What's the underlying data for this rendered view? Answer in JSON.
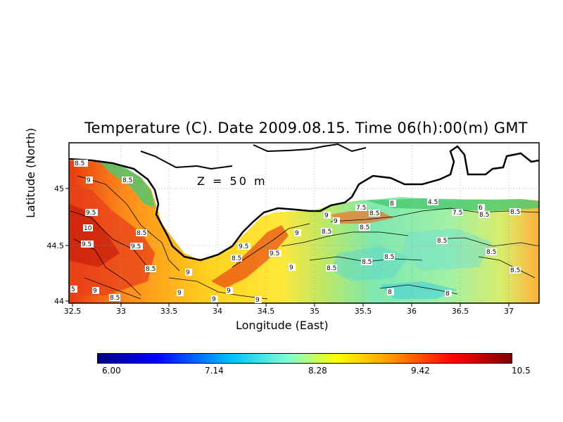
{
  "title": "Temperature (C). Date 2009.08.15. Time 06(h):00(m) GMT",
  "depth_label": "Z = 50 m",
  "xlabel": "Longitude (East)",
  "ylabel": "Latitude (North)",
  "x_ticks": [
    "32.5",
    "33",
    "33.5",
    "34",
    "34.5",
    "35",
    "35.5",
    "36",
    "36.5",
    "37"
  ],
  "y_ticks": [
    "44",
    "44.5",
    "45"
  ],
  "colorbar": {
    "labels": [
      "6.00",
      "7.14",
      "8.28",
      "9.42",
      "10.5"
    ],
    "colors": [
      "#00007f",
      "#0000ff",
      "#00bfff",
      "#7fffd4",
      "#ffff00",
      "#ff8c00",
      "#ff0000",
      "#7f0000"
    ]
  },
  "contour_labels": [
    "8.5",
    "9",
    "8.5",
    "9.5",
    "10",
    "9.5",
    "8.5",
    "9.5",
    "8.5",
    "9",
    "9",
    "9",
    "9",
    "8.5",
    "9",
    "9.5",
    "8.5",
    "9",
    "8.5",
    "9",
    "7.5",
    "8",
    "8.5",
    "9",
    "8.5",
    "4.5",
    "7.5",
    "6",
    "8.5",
    "8.5",
    "8.5",
    "8.5",
    "8.5",
    "8.5",
    "8.5",
    "8",
    "8",
    "9",
    "5",
    "8.5",
    "9",
    "9.5"
  ]
}
